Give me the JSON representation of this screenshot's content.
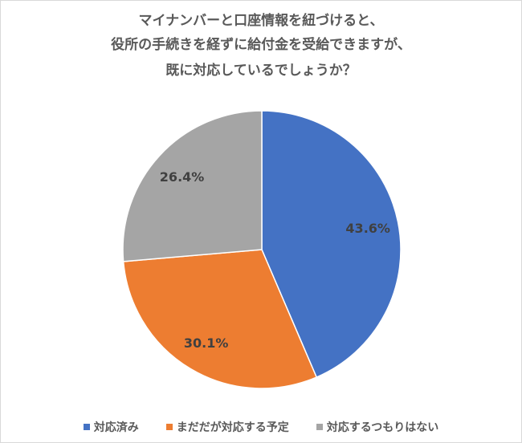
{
  "chart_data": {
    "type": "pie",
    "title_lines": [
      "マイナンバーと口座情報を紐づけると、",
      "役所の手続きを経ずに給付金を受給できますが、",
      "既に対応しているでしょうか？"
    ],
    "slices": [
      {
        "label": "対応済み",
        "value": 43.6,
        "display": "43.6%",
        "color": "#4472C4"
      },
      {
        "label": "まだだが対応する予定",
        "value": 30.1,
        "display": "30.1%",
        "color": "#ED7D31"
      },
      {
        "label": "対応するつもりはない",
        "value": 26.4,
        "display": "26.4%",
        "color": "#A5A5A5"
      }
    ],
    "legend_position": "bottom",
    "start_angle": "top",
    "direction": "clockwise"
  }
}
